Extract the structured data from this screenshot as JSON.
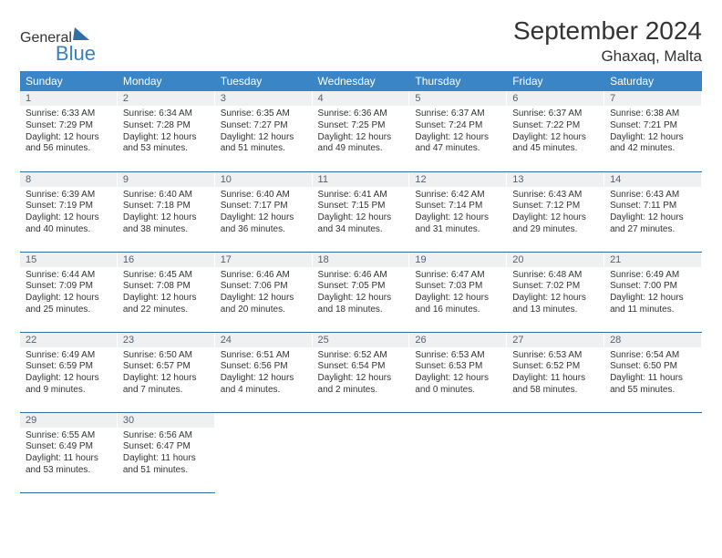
{
  "brand": {
    "text1": "General",
    "text2": "Blue"
  },
  "title": "September 2024",
  "location": "Ghaxaq, Malta",
  "weekdays": [
    "Sunday",
    "Monday",
    "Tuesday",
    "Wednesday",
    "Thursday",
    "Friday",
    "Saturday"
  ],
  "colors": {
    "header_bg": "#3a85c6",
    "header_text": "#ffffff",
    "daynum_bg": "#eef0f2",
    "daynum_text": "#556070",
    "row_border": "#2f6fa8",
    "body_text": "#333333",
    "logo_gray": "#6b6b6b",
    "logo_blue": "#3a7fbf"
  },
  "typography": {
    "title_fontsize": 28,
    "location_fontsize": 17,
    "weekday_fontsize": 12,
    "daynum_fontsize": 11,
    "cell_fontsize": 10
  },
  "days": [
    {
      "n": "1",
      "sunrise": "6:33 AM",
      "sunset": "7:29 PM",
      "day_h": "12",
      "day_m": "56"
    },
    {
      "n": "2",
      "sunrise": "6:34 AM",
      "sunset": "7:28 PM",
      "day_h": "12",
      "day_m": "53"
    },
    {
      "n": "3",
      "sunrise": "6:35 AM",
      "sunset": "7:27 PM",
      "day_h": "12",
      "day_m": "51"
    },
    {
      "n": "4",
      "sunrise": "6:36 AM",
      "sunset": "7:25 PM",
      "day_h": "12",
      "day_m": "49"
    },
    {
      "n": "5",
      "sunrise": "6:37 AM",
      "sunset": "7:24 PM",
      "day_h": "12",
      "day_m": "47"
    },
    {
      "n": "6",
      "sunrise": "6:37 AM",
      "sunset": "7:22 PM",
      "day_h": "12",
      "day_m": "45"
    },
    {
      "n": "7",
      "sunrise": "6:38 AM",
      "sunset": "7:21 PM",
      "day_h": "12",
      "day_m": "42"
    },
    {
      "n": "8",
      "sunrise": "6:39 AM",
      "sunset": "7:19 PM",
      "day_h": "12",
      "day_m": "40"
    },
    {
      "n": "9",
      "sunrise": "6:40 AM",
      "sunset": "7:18 PM",
      "day_h": "12",
      "day_m": "38"
    },
    {
      "n": "10",
      "sunrise": "6:40 AM",
      "sunset": "7:17 PM",
      "day_h": "12",
      "day_m": "36"
    },
    {
      "n": "11",
      "sunrise": "6:41 AM",
      "sunset": "7:15 PM",
      "day_h": "12",
      "day_m": "34"
    },
    {
      "n": "12",
      "sunrise": "6:42 AM",
      "sunset": "7:14 PM",
      "day_h": "12",
      "day_m": "31"
    },
    {
      "n": "13",
      "sunrise": "6:43 AM",
      "sunset": "7:12 PM",
      "day_h": "12",
      "day_m": "29"
    },
    {
      "n": "14",
      "sunrise": "6:43 AM",
      "sunset": "7:11 PM",
      "day_h": "12",
      "day_m": "27"
    },
    {
      "n": "15",
      "sunrise": "6:44 AM",
      "sunset": "7:09 PM",
      "day_h": "12",
      "day_m": "25"
    },
    {
      "n": "16",
      "sunrise": "6:45 AM",
      "sunset": "7:08 PM",
      "day_h": "12",
      "day_m": "22"
    },
    {
      "n": "17",
      "sunrise": "6:46 AM",
      "sunset": "7:06 PM",
      "day_h": "12",
      "day_m": "20"
    },
    {
      "n": "18",
      "sunrise": "6:46 AM",
      "sunset": "7:05 PM",
      "day_h": "12",
      "day_m": "18"
    },
    {
      "n": "19",
      "sunrise": "6:47 AM",
      "sunset": "7:03 PM",
      "day_h": "12",
      "day_m": "16"
    },
    {
      "n": "20",
      "sunrise": "6:48 AM",
      "sunset": "7:02 PM",
      "day_h": "12",
      "day_m": "13"
    },
    {
      "n": "21",
      "sunrise": "6:49 AM",
      "sunset": "7:00 PM",
      "day_h": "12",
      "day_m": "11"
    },
    {
      "n": "22",
      "sunrise": "6:49 AM",
      "sunset": "6:59 PM",
      "day_h": "12",
      "day_m": "9"
    },
    {
      "n": "23",
      "sunrise": "6:50 AM",
      "sunset": "6:57 PM",
      "day_h": "12",
      "day_m": "7"
    },
    {
      "n": "24",
      "sunrise": "6:51 AM",
      "sunset": "6:56 PM",
      "day_h": "12",
      "day_m": "4"
    },
    {
      "n": "25",
      "sunrise": "6:52 AM",
      "sunset": "6:54 PM",
      "day_h": "12",
      "day_m": "2"
    },
    {
      "n": "26",
      "sunrise": "6:53 AM",
      "sunset": "6:53 PM",
      "day_h": "12",
      "day_m": "0"
    },
    {
      "n": "27",
      "sunrise": "6:53 AM",
      "sunset": "6:52 PM",
      "day_h": "11",
      "day_m": "58"
    },
    {
      "n": "28",
      "sunrise": "6:54 AM",
      "sunset": "6:50 PM",
      "day_h": "11",
      "day_m": "55"
    },
    {
      "n": "29",
      "sunrise": "6:55 AM",
      "sunset": "6:49 PM",
      "day_h": "11",
      "day_m": "53"
    },
    {
      "n": "30",
      "sunrise": "6:56 AM",
      "sunset": "6:47 PM",
      "day_h": "11",
      "day_m": "51"
    }
  ],
  "labels": {
    "sunrise": "Sunrise:",
    "sunset": "Sunset:",
    "daylight": "Daylight:",
    "hours": "hours",
    "and": "and",
    "minutes": "minutes."
  },
  "grid": {
    "start_offset": 0,
    "total_cells": 35
  }
}
